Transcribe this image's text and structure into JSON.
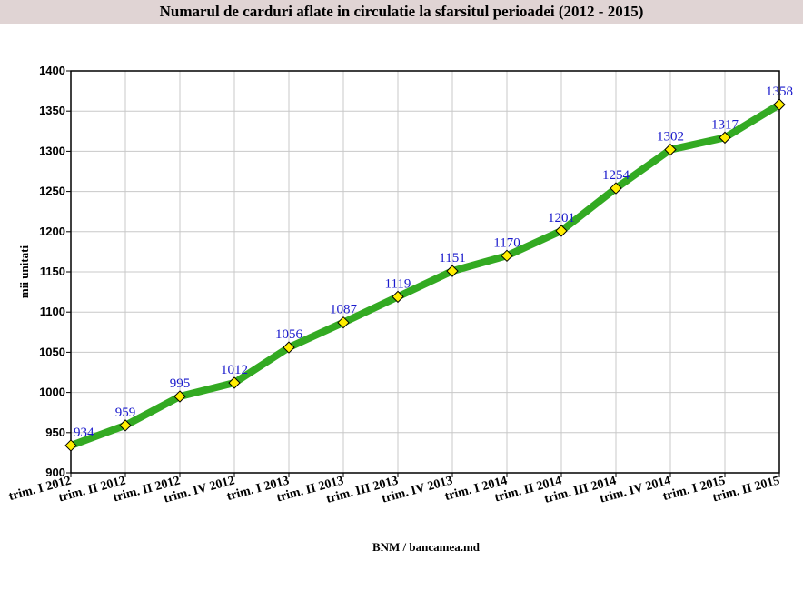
{
  "chart_data": {
    "type": "line",
    "title": "Numarul de carduri aflate in circulatie la sfarsitul perioadei (2012 - 2015)",
    "ylabel": "mii unitati",
    "xlabel": "",
    "source": "BNM / bancamea.md",
    "categories": [
      "trim. I 2012",
      "trim. II 2012",
      "trim. II 2012",
      "trim. IV 2012",
      "trim. I 2013",
      "trim. II 2013",
      "trim. III 2013",
      "trim. IV 2013",
      "trim. I 2014",
      "trim. II 2014",
      "trim. III 2014",
      "trim. IV 2014",
      "trim. I 2015",
      "trim. II 2015"
    ],
    "series": [
      {
        "values": [
          934,
          959,
          995,
          1012,
          1056,
          1087,
          1119,
          1151,
          1170,
          1201,
          1254,
          1302,
          1317,
          1358
        ],
        "color": "#33aa22",
        "marker_color": "#ffee00"
      }
    ],
    "ylim": [
      900,
      1400
    ],
    "yticks": [
      900,
      950,
      1000,
      1050,
      1100,
      1150,
      1200,
      1250,
      1300,
      1350,
      1400
    ],
    "grid": true,
    "data_label_color": "#1a1acc"
  }
}
